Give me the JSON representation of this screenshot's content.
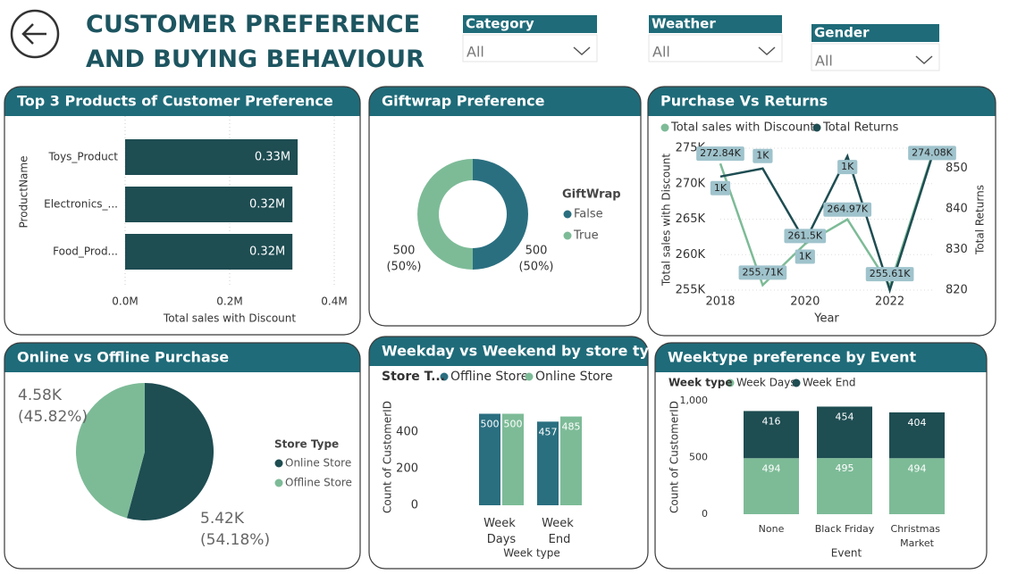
{
  "header": {
    "title": "CUSTOMER PREFERENCE AND BUYING BEHAVIOUR"
  },
  "filters": [
    {
      "label": "Category",
      "value": "All"
    },
    {
      "label": "Weather",
      "value": "All"
    },
    {
      "label": "Gender",
      "value": "All"
    }
  ],
  "chart_data": [
    {
      "type": "bar",
      "orientation": "horizontal",
      "title": "Top 3 Products of Customer Preference",
      "categories": [
        "Toys_Product",
        "Electronics_...",
        "Food_Prod..."
      ],
      "values": [
        330000,
        320000,
        320000
      ],
      "value_labels": [
        "0.33M",
        "0.32M",
        "0.32M"
      ],
      "color": "#1e4d52",
      "xlim": [
        0,
        400000
      ],
      "xticks": [
        {
          "value": 0,
          "label": "0.0M"
        },
        {
          "value": 200000,
          "label": "0.2M"
        },
        {
          "value": 400000,
          "label": "0.4M"
        }
      ],
      "x_label": "Total sales with Discount",
      "y_label": "ProductName",
      "grid": true
    },
    {
      "type": "donut",
      "title": "Giftwrap Preference",
      "legend_title": "GiftWrap",
      "categories": [
        "False",
        "True"
      ],
      "values": [
        500,
        500
      ],
      "percent_labels": [
        "(50%)",
        "(50%)"
      ],
      "colors": [
        "#2a6f80",
        "#7dbb97"
      ]
    },
    {
      "type": "line",
      "title": "Purchase Vs Returns",
      "x": [
        2018,
        2019,
        2020,
        2021,
        2022,
        2023
      ],
      "series": [
        {
          "name": "Total sales with Discount",
          "color": "#7dbb97",
          "values": [
            272840,
            255710,
            261500,
            264970,
            255610,
            274080
          ],
          "value_labels": [
            "272.84K",
            "255.71K",
            "261.5K",
            "264.97K",
            "255.61K",
            "274.08K"
          ]
        },
        {
          "name": "Total Returns",
          "color": "#1e4d52",
          "axis": "y2",
          "values": [
            848,
            850,
            832,
            853,
            820,
            853
          ],
          "value_labels": [
            "1K",
            "1K",
            "1K",
            "1K",
            null,
            null
          ]
        }
      ],
      "xlim": [
        2018,
        2023
      ],
      "xticks": [
        2018,
        2020,
        2022
      ],
      "ylim": [
        255000,
        275000
      ],
      "yticks": [
        {
          "value": 255000,
          "label": "255K"
        },
        {
          "value": 260000,
          "label": "260K"
        },
        {
          "value": 265000,
          "label": "265K"
        },
        {
          "value": 270000,
          "label": "270K"
        },
        {
          "value": 275000,
          "label": "275K"
        }
      ],
      "y2lim": [
        820,
        855
      ],
      "y2ticks": [
        820,
        830,
        840,
        850
      ],
      "x_label": "Year",
      "y_label": "Total sales with Discount",
      "y2_label": "Total Returns",
      "grid": true
    },
    {
      "type": "pie",
      "title": "Online vs Offline Purchase",
      "legend_title": "Store Type",
      "categories": [
        "Online Store",
        "Offline Store"
      ],
      "values": [
        5420,
        4580
      ],
      "value_labels": [
        "5.42K",
        "4.58K"
      ],
      "percent_labels": [
        "(54.18%)",
        "(45.82%)"
      ],
      "colors": [
        "#1e4d52",
        "#7dbb97"
      ]
    },
    {
      "type": "bar",
      "orientation": "vertical",
      "title": "Weekday vs Weekend by store type",
      "legend_title": "Store T...",
      "categories": [
        "Week Days",
        "Week End"
      ],
      "series": [
        {
          "name": "Offline Store",
          "color": "#2a6f80",
          "values": [
            500,
            457
          ]
        },
        {
          "name": "Online Store",
          "color": "#7dbb97",
          "values": [
            500,
            485
          ]
        }
      ],
      "ylim": [
        0,
        600
      ],
      "yticks": [
        0,
        200,
        400
      ],
      "x_label": "Week type",
      "y_label": "Count of CustomerID",
      "grid": false
    },
    {
      "type": "bar",
      "orientation": "vertical",
      "stacked": true,
      "title": "Weektype preference by Event",
      "legend_title": "Week type",
      "categories": [
        "None",
        "Black Friday",
        "Christmas Market"
      ],
      "series": [
        {
          "name": "Week Days",
          "color": "#7dbb97",
          "values": [
            494,
            495,
            494
          ]
        },
        {
          "name": "Week End",
          "color": "#1e4d52",
          "values": [
            416,
            454,
            404
          ]
        }
      ],
      "ylim": [
        0,
        1000
      ],
      "yticks": [
        0,
        500,
        {
          "value": 1000,
          "label": "1,000"
        }
      ],
      "x_label": "Event",
      "y_label": "Count of CustomerID",
      "grid": false
    }
  ]
}
